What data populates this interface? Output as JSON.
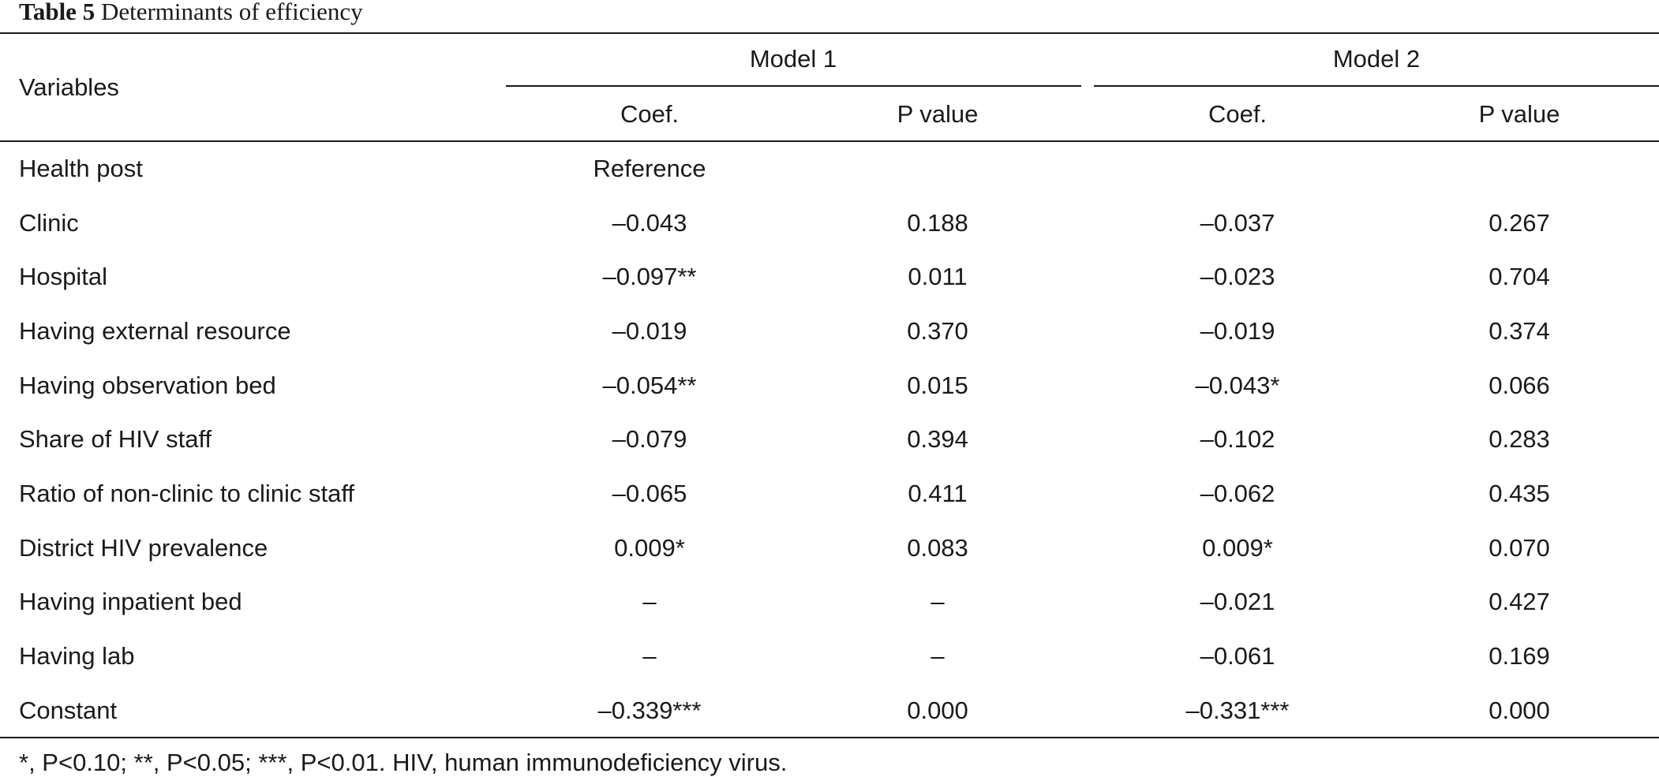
{
  "caption": {
    "label": "Table 5",
    "title": "Determinants of efficiency"
  },
  "header": {
    "variables": "Variables",
    "model1": "Model 1",
    "model2": "Model 2",
    "coef": "Coef.",
    "pvalue": "P value"
  },
  "rows": [
    {
      "variable": "Health post",
      "m1_coef": "Reference",
      "m1_p": "",
      "m2_coef": "",
      "m2_p": ""
    },
    {
      "variable": "Clinic",
      "m1_coef": "–0.043",
      "m1_p": "0.188",
      "m2_coef": "–0.037",
      "m2_p": "0.267"
    },
    {
      "variable": "Hospital",
      "m1_coef": "–0.097**",
      "m1_p": "0.011",
      "m2_coef": "–0.023",
      "m2_p": "0.704"
    },
    {
      "variable": "Having external resource",
      "m1_coef": "–0.019",
      "m1_p": "0.370",
      "m2_coef": "–0.019",
      "m2_p": "0.374"
    },
    {
      "variable": "Having observation bed",
      "m1_coef": "–0.054**",
      "m1_p": "0.015",
      "m2_coef": "–0.043*",
      "m2_p": "0.066"
    },
    {
      "variable": "Share of HIV staff",
      "m1_coef": "–0.079",
      "m1_p": "0.394",
      "m2_coef": "–0.102",
      "m2_p": "0.283"
    },
    {
      "variable": "Ratio of non-clinic to clinic staff",
      "m1_coef": "–0.065",
      "m1_p": "0.411",
      "m2_coef": "–0.062",
      "m2_p": "0.435"
    },
    {
      "variable": "District HIV prevalence",
      "m1_coef": "0.009*",
      "m1_p": "0.083",
      "m2_coef": "0.009*",
      "m2_p": "0.070"
    },
    {
      "variable": "Having inpatient bed",
      "m1_coef": "–",
      "m1_p": "–",
      "m2_coef": "–0.021",
      "m2_p": "0.427"
    },
    {
      "variable": "Having lab",
      "m1_coef": "–",
      "m1_p": "–",
      "m2_coef": "–0.061",
      "m2_p": "0.169"
    },
    {
      "variable": "Constant",
      "m1_coef": "–0.339***",
      "m1_p": "0.000",
      "m2_coef": "–0.331***",
      "m2_p": "0.000"
    }
  ],
  "footnote": "*, P<0.10; **, P<0.05; ***, P<0.01. HIV, human immunodeficiency virus."
}
